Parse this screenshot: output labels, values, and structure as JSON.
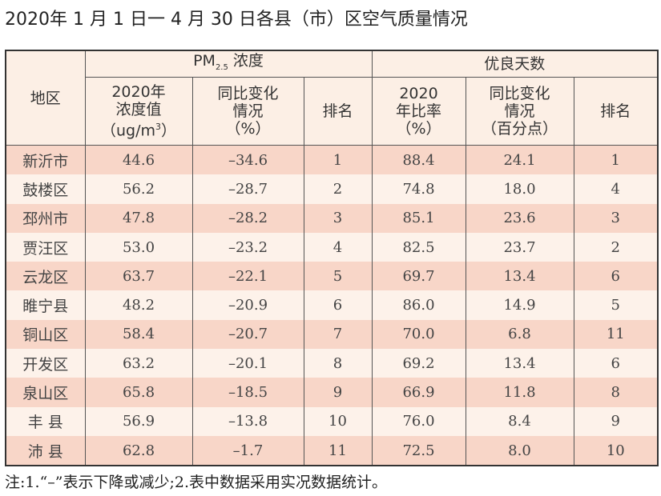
{
  "title": "2020年 1 月 1 日一 4 月 30 日各县（市）区空气质量情况",
  "header": {
    "area": "地区",
    "pm_group": "PM",
    "pm_sub": "2.5",
    "pm_group_suffix": "浓度",
    "good_group": "优良天数",
    "pm_value_l1": "2020年",
    "pm_value_l2": "浓度值",
    "pm_value_l3a": "（ug/m",
    "pm_value_sup": "3",
    "pm_value_l3b": "）",
    "pm_change_l1": "同比变化",
    "pm_change_l2": "情况",
    "pm_change_l3": "（%）",
    "pm_rank": "排名",
    "good_rate_l1": "2020",
    "good_rate_l2": "年比率",
    "good_rate_l3": "（%）",
    "good_change_l1": "同比变化",
    "good_change_l2": "情况",
    "good_change_l3": "（百分点）",
    "good_rank": "排名"
  },
  "rows": [
    [
      "新沂市",
      "44.6",
      "–34.6",
      "1",
      "88.4",
      "24.1",
      "1"
    ],
    [
      "鼓楼区",
      "56.2",
      "–28.7",
      "2",
      "74.8",
      "18.0",
      "4"
    ],
    [
      "邳州市",
      "47.8",
      "–28.2",
      "3",
      "85.1",
      "23.6",
      "3"
    ],
    [
      "贾汪区",
      "53.0",
      "–23.2",
      "4",
      "82.5",
      "23.7",
      "2"
    ],
    [
      "云龙区",
      "63.7",
      "–22.1",
      "5",
      "69.7",
      "13.4",
      "6"
    ],
    [
      "睢宁县",
      "48.2",
      "–20.9",
      "6",
      "86.0",
      "14.9",
      "5"
    ],
    [
      "铜山区",
      "58.4",
      "–20.7",
      "7",
      "70.0",
      "6.8",
      "11"
    ],
    [
      "开发区",
      "63.2",
      "–20.1",
      "8",
      "69.2",
      "13.4",
      "6"
    ],
    [
      "泉山区",
      "65.8",
      "–18.5",
      "9",
      "66.9",
      "11.8",
      "8"
    ],
    [
      "丰 县",
      "56.9",
      "–13.8",
      "10",
      "76.0",
      "8.4",
      "9"
    ],
    [
      "沛 县",
      "62.8",
      "–1.7",
      "11",
      "72.5",
      "8.0",
      "10"
    ]
  ],
  "note": "注:1.“–”表示下降或减少;2.表中数据采用实况数据统计。",
  "colors": {
    "row_dark": "#f8d6c8",
    "row_light": "#fdf2ea",
    "header_bg": "#fcefe5"
  }
}
